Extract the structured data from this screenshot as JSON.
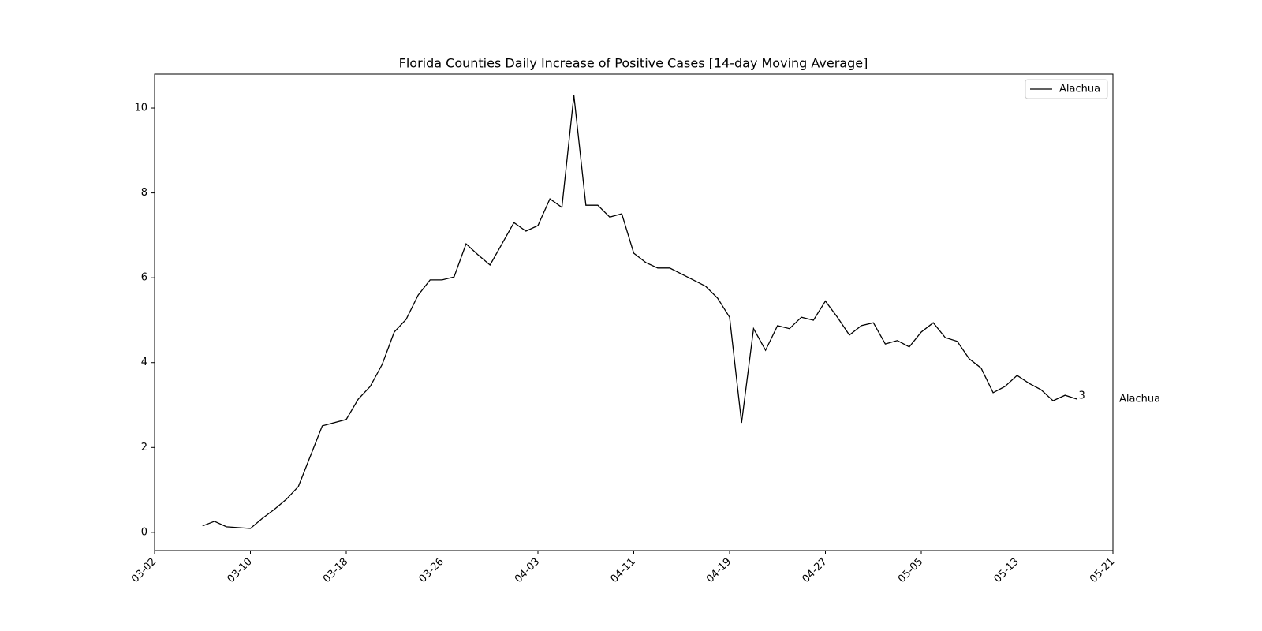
{
  "chart_data": {
    "type": "line",
    "title": "Florida Counties Daily Increase of Positive Cases [14-day Moving Average]",
    "x": [
      "03-06",
      "03-07",
      "03-08",
      "03-10",
      "03-11",
      "03-12",
      "03-13",
      "03-14",
      "03-16",
      "03-18",
      "03-19",
      "03-20",
      "03-21",
      "03-22",
      "03-23",
      "03-24",
      "03-25",
      "03-26",
      "03-27",
      "03-28",
      "03-29",
      "03-30",
      "04-01",
      "04-02",
      "04-03",
      "04-04",
      "04-05",
      "04-06",
      "04-07",
      "04-08",
      "04-09",
      "04-10",
      "04-11",
      "04-12",
      "04-13",
      "04-14",
      "04-17",
      "04-18",
      "04-19",
      "04-20",
      "04-21",
      "04-22",
      "04-23",
      "04-24",
      "04-25",
      "04-26",
      "04-27",
      "04-28",
      "04-29",
      "04-30",
      "05-01",
      "05-02",
      "05-03",
      "05-04",
      "05-05",
      "05-06",
      "05-07",
      "05-08",
      "05-09",
      "05-10",
      "05-11",
      "05-12",
      "05-13",
      "05-14",
      "05-15",
      "05-16",
      "05-17",
      "05-18"
    ],
    "series": [
      {
        "name": "Alachua",
        "color": "#000000",
        "values": [
          0.15,
          0.26,
          0.13,
          0.09,
          0.33,
          0.54,
          0.78,
          1.08,
          2.51,
          2.66,
          3.14,
          3.44,
          3.96,
          4.72,
          5.02,
          5.59,
          5.95,
          5.95,
          6.02,
          6.8,
          6.54,
          6.3,
          7.3,
          7.1,
          7.23,
          7.86,
          7.66,
          10.3,
          7.71,
          7.71,
          7.43,
          7.51,
          6.58,
          6.36,
          6.23,
          6.23,
          5.8,
          5.52,
          5.07,
          2.58,
          4.8,
          4.29,
          4.87,
          4.8,
          5.07,
          5.0,
          5.45,
          5.07,
          4.65,
          4.87,
          4.94,
          4.44,
          4.52,
          4.37,
          4.72,
          4.94,
          4.59,
          4.5,
          4.09,
          3.87,
          3.29,
          3.44,
          3.7,
          3.51,
          3.36,
          3.1,
          3.23,
          3.14
        ]
      }
    ],
    "annotations": [
      "3",
      "Alachua"
    ],
    "xlim": [
      "03-02",
      "05-21"
    ],
    "xticks": [
      "03-02",
      "03-10",
      "03-18",
      "03-26",
      "04-03",
      "04-11",
      "04-19",
      "04-27",
      "05-05",
      "05-13",
      "05-21"
    ],
    "ylim": [
      -0.43,
      10.8
    ],
    "yticks": [
      0,
      2,
      4,
      6,
      8,
      10
    ],
    "grid": false,
    "legend": "upper right"
  }
}
